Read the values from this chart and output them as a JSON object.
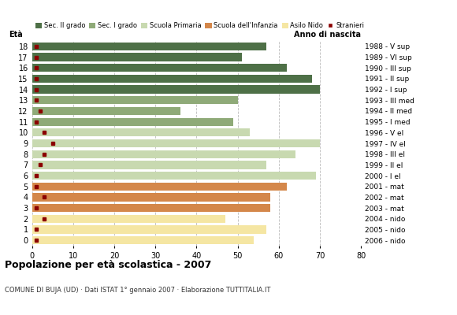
{
  "ages": [
    0,
    1,
    2,
    3,
    4,
    5,
    6,
    7,
    8,
    9,
    10,
    11,
    12,
    13,
    14,
    15,
    16,
    17,
    18
  ],
  "years": [
    "2006 - nido",
    "2005 - nido",
    "2004 - nido",
    "2003 - mat",
    "2002 - mat",
    "2001 - mat",
    "2000 - I el",
    "1999 - II el",
    "1998 - III el",
    "1997 - IV el",
    "1996 - V el",
    "1995 - I med",
    "1994 - II med",
    "1993 - III med",
    "1992 - I sup",
    "1991 - II sup",
    "1990 - III sup",
    "1989 - VI sup",
    "1988 - V sup"
  ],
  "bar_values": [
    54,
    57,
    47,
    58,
    58,
    62,
    69,
    57,
    64,
    70,
    53,
    49,
    36,
    50,
    70,
    68,
    62,
    51,
    57
  ],
  "stranieri": [
    1,
    1,
    3,
    1,
    3,
    1,
    1,
    2,
    3,
    5,
    3,
    1,
    2,
    1,
    1,
    1,
    1,
    1,
    1
  ],
  "bar_colors": [
    "#f5e6a3",
    "#f5e6a3",
    "#f5e6a3",
    "#d4874a",
    "#d4874a",
    "#d4874a",
    "#c8d9b0",
    "#c8d9b0",
    "#c8d9b0",
    "#c8d9b0",
    "#c8d9b0",
    "#8faa78",
    "#8faa78",
    "#8faa78",
    "#4e7047",
    "#4e7047",
    "#4e7047",
    "#4e7047",
    "#4e7047"
  ],
  "stranieri_color": "#8b0000",
  "legend_labels": [
    "Sec. II grado",
    "Sec. I grado",
    "Scuola Primaria",
    "Scuola dell'Infanzia",
    "Asilo Nido",
    "Stranieri"
  ],
  "legend_colors": [
    "#4e7047",
    "#8faa78",
    "#c8d9b0",
    "#d4874a",
    "#f5e6a3",
    "#8b0000"
  ],
  "title": "Popolazione per età scolastica - 2007",
  "subtitle": "COMUNE DI BUJA (UD) · Dati ISTAT 1° gennaio 2007 · Elaborazione TUTTITALIA.IT",
  "eta_label": "Età",
  "anno_label": "Anno di nascita",
  "xlim": [
    0,
    80
  ],
  "xticks": [
    0,
    10,
    20,
    30,
    40,
    50,
    60,
    70,
    80
  ],
  "bg_color": "#ffffff",
  "grid_color": "#bbbbbb",
  "bar_height": 0.75
}
